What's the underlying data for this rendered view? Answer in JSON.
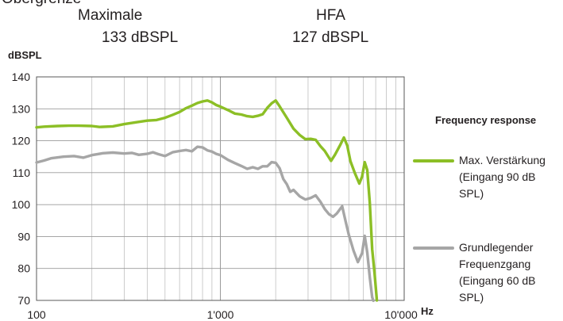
{
  "header": {
    "cut_text": "Obergrenze",
    "maximale_label": "Maximale",
    "maximale_value": "133  dBSPL",
    "hfa_label": "HFA",
    "hfa_value": "127  dBSPL"
  },
  "colors": {
    "green_series": "#8cbf26",
    "gray_series": "#a6a6a6",
    "grid": "#bfbfbf",
    "axis": "#595959"
  },
  "chart_data": {
    "type": "line",
    "title": "",
    "ylabel": "dBSPL",
    "xlabel": "Hz",
    "x_scale": "log",
    "xlim": [
      100,
      10000
    ],
    "ylim": [
      70,
      140
    ],
    "y_ticks": [
      70,
      80,
      90,
      100,
      110,
      120,
      130,
      140
    ],
    "x_ticks": [
      100,
      1000,
      10000
    ],
    "x_tick_labels": [
      "100",
      "1'000",
      "10'000"
    ],
    "grid": true,
    "legend_title": "Frequency response",
    "legend_position": "right",
    "series": [
      {
        "name": "Max. Verstärkung\n(Eingang 90 dB\nSPL)",
        "color": "#8cbf26",
        "points": [
          [
            100,
            124.2
          ],
          [
            110,
            124.4
          ],
          [
            130,
            124.6
          ],
          [
            150,
            124.7
          ],
          [
            170,
            124.7
          ],
          [
            200,
            124.6
          ],
          [
            220,
            124.3
          ],
          [
            260,
            124.5
          ],
          [
            300,
            125.2
          ],
          [
            350,
            125.8
          ],
          [
            400,
            126.3
          ],
          [
            450,
            126.5
          ],
          [
            500,
            127.2
          ],
          [
            550,
            128.1
          ],
          [
            600,
            129.0
          ],
          [
            650,
            130.2
          ],
          [
            700,
            131.0
          ],
          [
            750,
            131.8
          ],
          [
            800,
            132.3
          ],
          [
            850,
            132.6
          ],
          [
            900,
            132.0
          ],
          [
            950,
            131.2
          ],
          [
            1000,
            130.7
          ],
          [
            1100,
            129.6
          ],
          [
            1200,
            128.5
          ],
          [
            1300,
            128.2
          ],
          [
            1400,
            127.7
          ],
          [
            1500,
            127.5
          ],
          [
            1600,
            127.8
          ],
          [
            1700,
            128.3
          ],
          [
            1800,
            130.3
          ],
          [
            1900,
            131.7
          ],
          [
            2000,
            132.6
          ],
          [
            2100,
            130.8
          ],
          [
            2300,
            127.2
          ],
          [
            2500,
            123.8
          ],
          [
            2700,
            121.8
          ],
          [
            2900,
            120.5
          ],
          [
            3100,
            120.6
          ],
          [
            3300,
            120.3
          ],
          [
            3500,
            118.3
          ],
          [
            3700,
            116.8
          ],
          [
            4000,
            113.7
          ],
          [
            4200,
            115.6
          ],
          [
            4500,
            118.8
          ],
          [
            4700,
            121.0
          ],
          [
            4900,
            118.5
          ],
          [
            5100,
            113.6
          ],
          [
            5400,
            109.8
          ],
          [
            5700,
            106.6
          ],
          [
            5900,
            108.8
          ],
          [
            6100,
            113.3
          ],
          [
            6300,
            110.8
          ],
          [
            6500,
            100.5
          ],
          [
            6700,
            86.0
          ],
          [
            6900,
            78.5
          ],
          [
            7100,
            70.0
          ]
        ]
      },
      {
        "name": "Grundlegender\nFrequenzgang\n(Eingang 60 dB\nSPL)",
        "color": "#a6a6a6",
        "points": [
          [
            100,
            113.2
          ],
          [
            110,
            113.8
          ],
          [
            120,
            114.5
          ],
          [
            140,
            115.0
          ],
          [
            160,
            115.2
          ],
          [
            180,
            114.7
          ],
          [
            200,
            115.5
          ],
          [
            230,
            116.1
          ],
          [
            260,
            116.3
          ],
          [
            300,
            116.0
          ],
          [
            330,
            116.2
          ],
          [
            360,
            115.6
          ],
          [
            400,
            115.9
          ],
          [
            430,
            116.4
          ],
          [
            460,
            115.8
          ],
          [
            500,
            115.2
          ],
          [
            550,
            116.4
          ],
          [
            600,
            116.8
          ],
          [
            650,
            117.1
          ],
          [
            700,
            116.7
          ],
          [
            750,
            118.1
          ],
          [
            800,
            117.9
          ],
          [
            850,
            117.0
          ],
          [
            900,
            116.6
          ],
          [
            950,
            115.9
          ],
          [
            1000,
            115.5
          ],
          [
            1100,
            114.0
          ],
          [
            1200,
            113.0
          ],
          [
            1300,
            112.1
          ],
          [
            1400,
            111.2
          ],
          [
            1500,
            111.7
          ],
          [
            1600,
            111.2
          ],
          [
            1700,
            112.0
          ],
          [
            1800,
            112.0
          ],
          [
            1900,
            113.3
          ],
          [
            2000,
            113.1
          ],
          [
            2100,
            111.4
          ],
          [
            2200,
            108.0
          ],
          [
            2300,
            106.4
          ],
          [
            2400,
            104.0
          ],
          [
            2500,
            104.6
          ],
          [
            2700,
            102.6
          ],
          [
            2900,
            101.6
          ],
          [
            3100,
            102.1
          ],
          [
            3300,
            102.9
          ],
          [
            3500,
            100.9
          ],
          [
            3700,
            98.6
          ],
          [
            3900,
            97.0
          ],
          [
            4100,
            96.2
          ],
          [
            4300,
            97.2
          ],
          [
            4600,
            99.5
          ],
          [
            4800,
            94.8
          ],
          [
            5000,
            90.5
          ],
          [
            5300,
            85.6
          ],
          [
            5600,
            82.0
          ],
          [
            5900,
            84.8
          ],
          [
            6100,
            90.2
          ],
          [
            6300,
            85.0
          ],
          [
            6500,
            77.2
          ],
          [
            6700,
            71.0
          ],
          [
            6800,
            69.9
          ]
        ]
      }
    ]
  }
}
